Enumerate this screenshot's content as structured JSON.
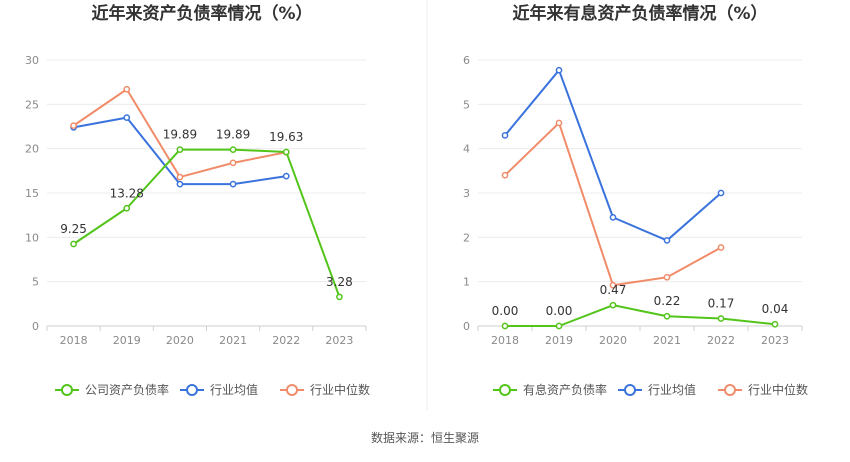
{
  "source_label": "数据来源：恒生聚源",
  "chart_data": [
    {
      "type": "line",
      "title": "近年来资产负债率情况（%）",
      "categories": [
        "2018",
        "2019",
        "2020",
        "2021",
        "2022",
        "2023"
      ],
      "ylim": [
        0,
        30
      ],
      "yticks": [
        "0",
        "5",
        "10",
        "15",
        "20",
        "25",
        "30"
      ],
      "grid": true,
      "legend_position": "bottom",
      "series": [
        {
          "name": "公司资产负债率",
          "color": "#52c41a",
          "values": [
            9.25,
            13.28,
            19.89,
            19.89,
            19.63,
            3.28
          ],
          "labels": [
            "9.25",
            "13.28",
            "19.89",
            "19.89",
            "19.63",
            "3.28"
          ]
        },
        {
          "name": "行业均值",
          "color": "#3b73dd",
          "values": [
            22.4,
            23.5,
            16.0,
            16.0,
            16.9,
            null
          ]
        },
        {
          "name": "行业中位数",
          "color": "#f08c6a",
          "values": [
            22.6,
            26.7,
            16.8,
            18.4,
            19.6,
            null
          ]
        }
      ]
    },
    {
      "type": "line",
      "title": "近年来有息资产负债率情况（%）",
      "categories": [
        "2018",
        "2019",
        "2020",
        "2021",
        "2022",
        "2023"
      ],
      "ylim": [
        0,
        6
      ],
      "yticks": [
        "0",
        "1",
        "2",
        "3",
        "4",
        "5",
        "6"
      ],
      "grid": true,
      "legend_position": "bottom",
      "series": [
        {
          "name": "有息资产负债率",
          "color": "#52c41a",
          "values": [
            0.0,
            0.0,
            0.47,
            0.22,
            0.17,
            0.04
          ],
          "labels": [
            "0.00",
            "0.00",
            "0.47",
            "0.22",
            "0.17",
            "0.04"
          ]
        },
        {
          "name": "行业均值",
          "color": "#3b73dd",
          "values": [
            4.3,
            5.77,
            2.45,
            1.93,
            3.0,
            null
          ]
        },
        {
          "name": "行业中位数",
          "color": "#f08c6a",
          "values": [
            3.4,
            4.58,
            0.92,
            1.1,
            1.77,
            null
          ]
        }
      ]
    }
  ]
}
